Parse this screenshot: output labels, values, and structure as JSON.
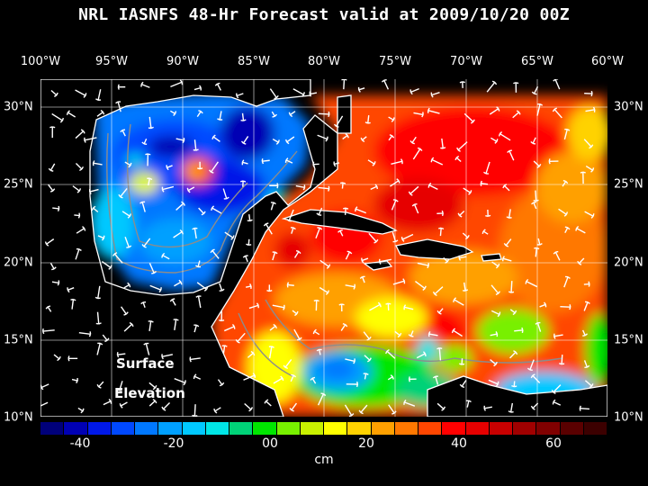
{
  "title": "NRL IASNFS  48-Hr Forecast valid at 2009/10/20 00Z",
  "map_annotation": {
    "line1": "Surface",
    "line2": "Elevation"
  },
  "longitude_labels": [
    "100°W",
    "95°W",
    "90°W",
    "85°W",
    "80°W",
    "75°W",
    "70°W",
    "65°W",
    "60°W"
  ],
  "latitude_labels": [
    "30°N",
    "25°N",
    "20°N",
    "15°N",
    "10°N"
  ],
  "colorbar": {
    "unit": "cm",
    "tick_labels": [
      "-40",
      "-20",
      "00",
      "20",
      "40",
      "60"
    ],
    "colors": [
      "#00007a",
      "#0000b4",
      "#0018e8",
      "#0048ff",
      "#0078ff",
      "#00a0ff",
      "#00c8ff",
      "#00e6e6",
      "#00d278",
      "#00e600",
      "#78f000",
      "#c8f000",
      "#ffff00",
      "#ffd200",
      "#ffa000",
      "#ff7800",
      "#ff4600",
      "#ff0000",
      "#e60000",
      "#c80000",
      "#a00000",
      "#800000",
      "#5a0000",
      "#3c0000"
    ],
    "range_cm": [
      -48,
      72
    ]
  },
  "field_colors": {
    "land": "#000000",
    "coastline": "#ffffff",
    "depth_contour": "#8c8c8c",
    "vectors": "#ffffff"
  }
}
